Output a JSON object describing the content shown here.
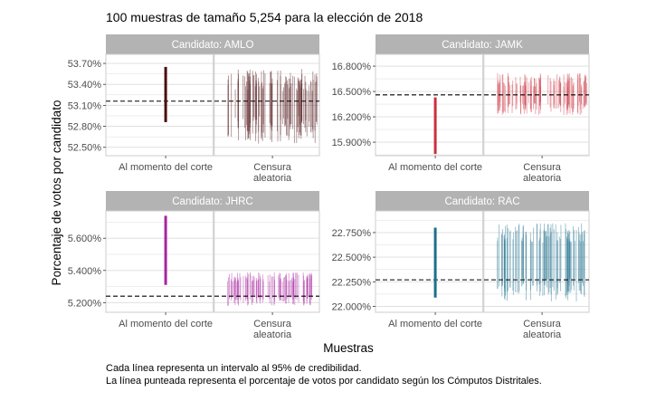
{
  "chart_data": {
    "type": "interval",
    "title": "100 muestras de tamaño 5,254 para la elección de 2018",
    "xlabel": "Muestras",
    "ylabel": "Porcentaje de votos por candidato",
    "caption": [
      "Cada línea representa un intervalo al 95% de credibilidad.",
      "La línea punteada representa el porcentaje de votos por candidato según los Cómputos Distritales."
    ],
    "categories": [
      "Al momento del corte",
      "Censura aleatoria"
    ],
    "n_samples": 100,
    "panels": [
      {
        "name": "Candidato: AMLO",
        "color": "#4a0c0e",
        "yticks": [
          "53.70%",
          "53.40%",
          "53.10%",
          "52.80%",
          "52.50%"
        ],
        "ytick_values": [
          53.7,
          53.4,
          53.1,
          52.8,
          52.5
        ],
        "ylim": [
          52.38,
          53.83
        ],
        "reference": 53.16,
        "corte_interval": [
          52.86,
          53.65
        ],
        "censura_range": {
          "lower": [
            52.55,
            52.95
          ],
          "upper": [
            53.3,
            53.62
          ]
        }
      },
      {
        "name": "Candidato: JAMK",
        "color": "#c9313e",
        "yticks": [
          "16.800%",
          "16.500%",
          "16.200%",
          "15.900%"
        ],
        "ytick_values": [
          16.8,
          16.5,
          16.2,
          15.9
        ],
        "ylim": [
          15.74,
          16.94
        ],
        "reference": 16.46,
        "corte_interval": [
          15.76,
          16.43
        ],
        "censura_range": {
          "lower": [
            16.22,
            16.38
          ],
          "upper": [
            16.55,
            16.72
          ]
        }
      },
      {
        "name": "Candidato: JHRC",
        "color": "#a8259f",
        "yticks": [
          "5.600%",
          "5.400%",
          "5.200%"
        ],
        "ytick_values": [
          5.6,
          5.4,
          5.2
        ],
        "ylim": [
          5.14,
          5.77
        ],
        "reference": 5.24,
        "corte_interval": [
          5.31,
          5.74
        ],
        "censura_range": {
          "lower": [
            5.18,
            5.25
          ],
          "upper": [
            5.33,
            5.39
          ]
        }
      },
      {
        "name": "Candidato: RAC",
        "color": "#1f6f8b",
        "yticks": [
          "22.750%",
          "22.500%",
          "22.250%",
          "22.000%"
        ],
        "ytick_values": [
          22.75,
          22.5,
          22.25,
          22.0
        ],
        "ylim": [
          21.94,
          22.97
        ],
        "reference": 22.27,
        "corte_interval": [
          22.09,
          22.8
        ],
        "censura_range": {
          "lower": [
            22.05,
            22.3
          ],
          "upper": [
            22.65,
            22.85
          ]
        }
      }
    ]
  }
}
